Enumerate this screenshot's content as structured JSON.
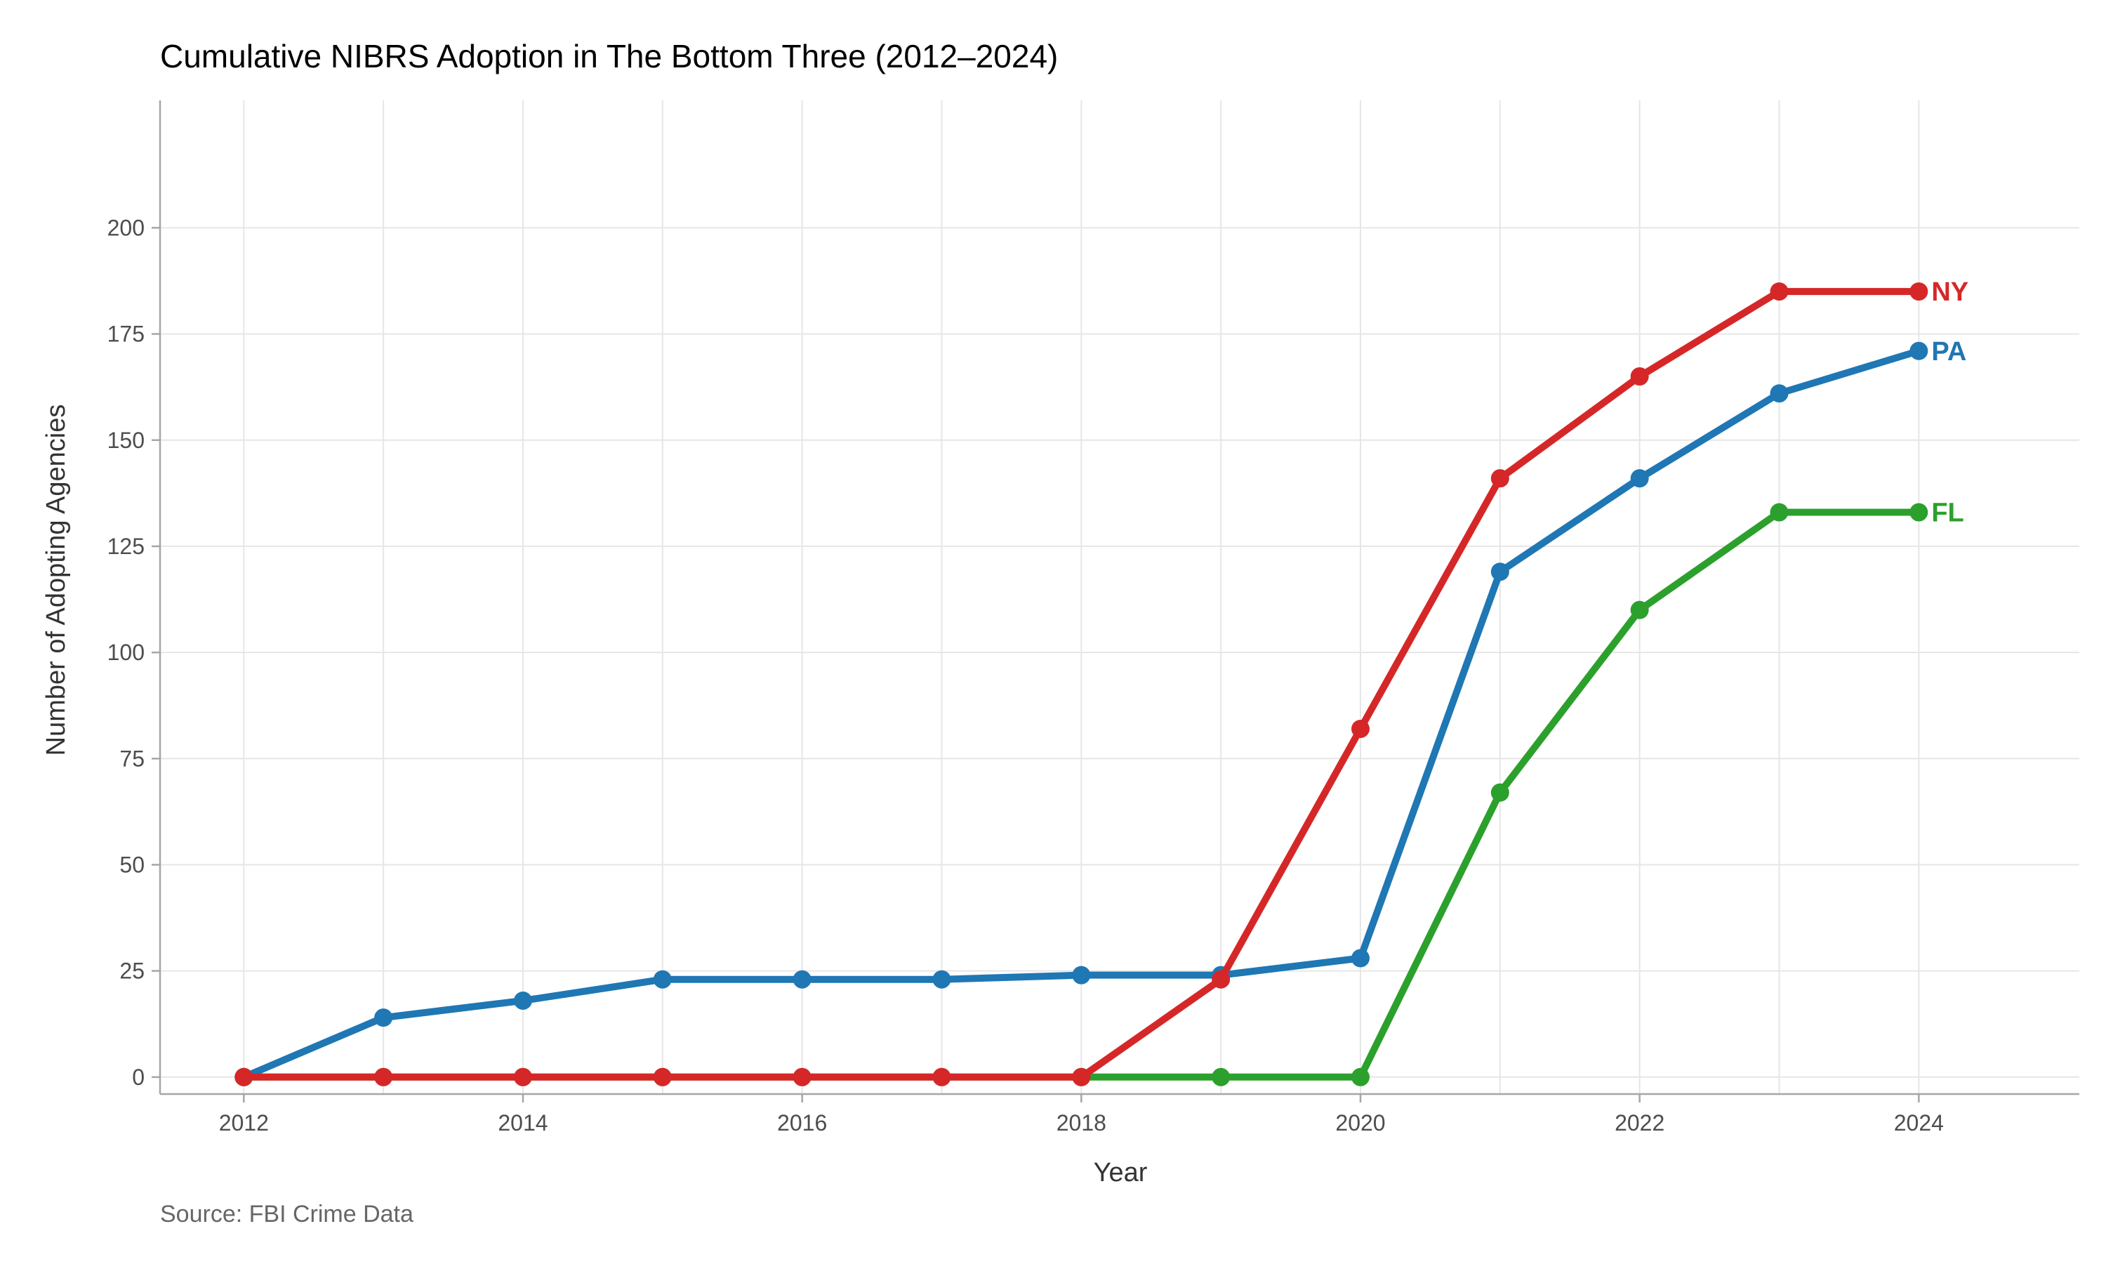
{
  "chart_data": {
    "type": "line",
    "title": "Cumulative NIBRS Adoption in The Bottom Three (2012–2024)",
    "xlabel": "Year",
    "ylabel": "Number of Adopting Agencies",
    "caption": "Source: FBI Crime Data",
    "x": [
      2012,
      2013,
      2014,
      2015,
      2016,
      2017,
      2018,
      2019,
      2020,
      2021,
      2022,
      2023,
      2024
    ],
    "xlim": [
      2011.4,
      2025.15
    ],
    "ylim": [
      -4,
      230
    ],
    "x_ticks": [
      2012,
      2014,
      2016,
      2018,
      2020,
      2022,
      2024
    ],
    "y_ticks": [
      0,
      25,
      50,
      75,
      100,
      125,
      150,
      175,
      200
    ],
    "grid": true,
    "legend": "direct labels at line ends",
    "series": [
      {
        "name": "FL",
        "color": "#2ca02c",
        "values": [
          0,
          0,
          0,
          0,
          0,
          0,
          0,
          0,
          0,
          67,
          110,
          133,
          133
        ]
      },
      {
        "name": "PA",
        "color": "#1f77b4",
        "values": [
          0,
          14,
          18,
          23,
          23,
          23,
          24,
          24,
          28,
          119,
          141,
          161,
          171
        ]
      },
      {
        "name": "NY",
        "color": "#d62728",
        "values": [
          0,
          0,
          0,
          0,
          0,
          0,
          0,
          23,
          82,
          141,
          165,
          185,
          185
        ]
      }
    ]
  }
}
